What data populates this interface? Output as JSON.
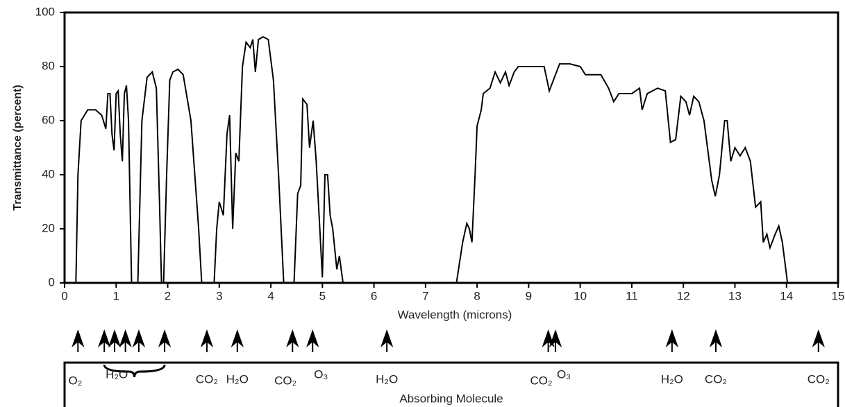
{
  "chart_data": {
    "type": "line",
    "xlabel": "Wavelength (microns)",
    "ylabel": "Transmittance (percent)",
    "xlim": [
      0,
      15
    ],
    "ylim": [
      0,
      100
    ],
    "xticks": [
      0,
      1,
      2,
      3,
      4,
      5,
      6,
      7,
      8,
      9,
      10,
      11,
      12,
      13,
      14,
      15
    ],
    "yticks": [
      0,
      20,
      40,
      60,
      80,
      100
    ],
    "color": "#000000",
    "x": [
      0.22,
      0.26,
      0.32,
      0.45,
      0.6,
      0.72,
      0.8,
      0.84,
      0.88,
      0.92,
      0.96,
      1.0,
      1.04,
      1.08,
      1.12,
      1.16,
      1.2,
      1.24,
      1.3,
      1.42,
      1.5,
      1.6,
      1.7,
      1.78,
      1.84,
      1.88,
      1.92,
      1.98,
      2.04,
      2.1,
      2.2,
      2.3,
      2.45,
      2.6,
      2.66,
      2.9,
      2.95,
      3.0,
      3.08,
      3.15,
      3.2,
      3.26,
      3.32,
      3.38,
      3.45,
      3.52,
      3.6,
      3.65,
      3.7,
      3.76,
      3.85,
      3.95,
      4.05,
      4.15,
      4.25,
      4.45,
      4.52,
      4.58,
      4.62,
      4.7,
      4.75,
      4.82,
      4.88,
      4.95,
      5.0,
      5.05,
      5.1,
      5.15,
      5.2,
      5.28,
      5.33,
      5.4,
      7.6,
      7.72,
      7.8,
      7.85,
      7.9,
      7.96,
      8.0,
      8.08,
      8.12,
      8.25,
      8.35,
      8.45,
      8.55,
      8.62,
      8.72,
      8.8,
      9.0,
      9.3,
      9.4,
      9.5,
      9.6,
      9.8,
      10.0,
      10.1,
      10.4,
      10.55,
      10.65,
      10.75,
      11.0,
      11.15,
      11.2,
      11.3,
      11.5,
      11.65,
      11.75,
      11.85,
      11.95,
      12.05,
      12.12,
      12.2,
      12.3,
      12.4,
      12.55,
      12.62,
      12.7,
      12.8,
      12.85,
      12.92,
      13.0,
      13.1,
      13.2,
      13.3,
      13.4,
      13.5,
      13.55,
      13.62,
      13.68,
      13.78,
      13.85,
      13.92,
      14.0,
      14.02
    ],
    "values": [
      0,
      40,
      60,
      64,
      64,
      62,
      57,
      70,
      70,
      55,
      49,
      70,
      71,
      55,
      45,
      70,
      73,
      60,
      0,
      0,
      60,
      76,
      78,
      72,
      30,
      0,
      0,
      40,
      75,
      78,
      79,
      77,
      60,
      20,
      0,
      0,
      20,
      30,
      25,
      55,
      62,
      20,
      48,
      45,
      80,
      89,
      87,
      90,
      78,
      90,
      91,
      90,
      75,
      40,
      0,
      0,
      33,
      36,
      68,
      66,
      50,
      60,
      45,
      20,
      2,
      40,
      40,
      25,
      20,
      5,
      10,
      0,
      0,
      15,
      22,
      20,
      15,
      40,
      58,
      64,
      70,
      72,
      78,
      74,
      78,
      73,
      78,
      80,
      80,
      80,
      71,
      76,
      81,
      81,
      80,
      77,
      77,
      72,
      67,
      70,
      70,
      72,
      64,
      70,
      72,
      71,
      52,
      53,
      69,
      67,
      62,
      69,
      67,
      60,
      38,
      32,
      40,
      60,
      60,
      45,
      50,
      47,
      50,
      45,
      28,
      30,
      15,
      18,
      13,
      18,
      21,
      15,
      3,
      0
    ],
    "annotation_title": "Absorbing Molecule",
    "molecules": [
      {
        "label": "O₂",
        "arrows": [
          0.26
        ]
      },
      {
        "label": "H₂O",
        "arrows": [
          0.77,
          0.97,
          1.18,
          1.44,
          1.94
        ]
      },
      {
        "label": "CO₂",
        "arrows": [
          2.76
        ]
      },
      {
        "label": "H₂O",
        "arrows": [
          3.35
        ]
      },
      {
        "label": "CO₂",
        "arrows": [
          4.42
        ]
      },
      {
        "label": "O₃",
        "arrows": [
          4.81
        ]
      },
      {
        "label": "H₂O",
        "arrows": [
          6.25
        ]
      },
      {
        "label": "CO₂",
        "arrows": [
          9.38
        ]
      },
      {
        "label": "O₃",
        "arrows": [
          9.52
        ]
      },
      {
        "label": "H₂O",
        "arrows": [
          11.78
        ]
      },
      {
        "label": "CO₂",
        "arrows": [
          12.63
        ]
      },
      {
        "label": "CO₂",
        "arrows": [
          14.62
        ]
      }
    ]
  }
}
